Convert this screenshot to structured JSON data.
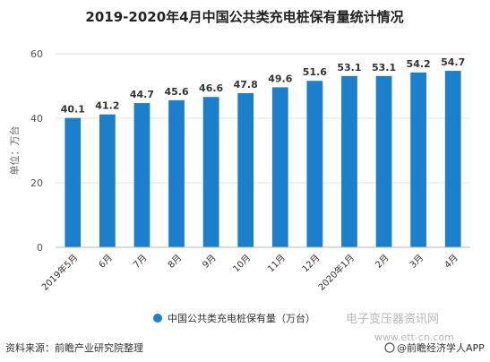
{
  "chart_data": {
    "type": "bar",
    "title": "2019-2020年4月中国公共类充电桩保有量统计情况",
    "ylabel": "单位：万台",
    "xlabel": "",
    "ylim": [
      0,
      60
    ],
    "yticks": [
      0,
      20,
      40,
      60
    ],
    "grid": true,
    "legend": "bottom-center",
    "categories": [
      "2019年5月",
      "6月",
      "7月",
      "8月",
      "9月",
      "10月",
      "11月",
      "12月",
      "2020年1月",
      "2月",
      "3月",
      "4月"
    ],
    "series": [
      {
        "name": "中国公共类充电桩保有量（万台）",
        "values": [
          40.1,
          41.2,
          44.7,
          45.6,
          46.6,
          47.8,
          49.6,
          51.6,
          53.1,
          53.1,
          54.2,
          54.7
        ],
        "color": "#1b7fcc"
      }
    ]
  },
  "footer": {
    "source": "资料来源：前瞻产业研究院整理",
    "credit": "@前瞻经济学人APP"
  },
  "watermark": {
    "site_name": "电子变压器资讯网",
    "site_url": "www.ett-cn.com"
  }
}
